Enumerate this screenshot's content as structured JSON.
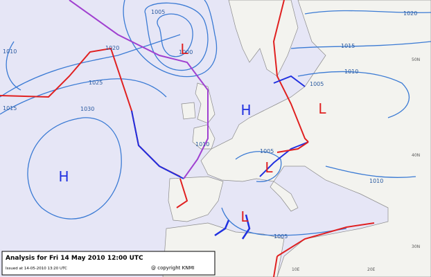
{
  "map": {
    "isobar_labels": [
      "1020",
      "1020",
      "1015",
      "1010",
      "1010",
      "1005",
      "1025",
      "1015",
      "1030",
      "1005",
      "1000",
      "1005",
      "1005",
      "1010",
      "1010"
    ],
    "pressure_centers": [
      {
        "label": "H",
        "kind": "high"
      },
      {
        "label": "H",
        "kind": "high"
      },
      {
        "label": "L",
        "kind": "low"
      },
      {
        "label": "L",
        "kind": "low"
      },
      {
        "label": "L",
        "kind": "low"
      },
      {
        "label": "L",
        "kind": "low"
      }
    ],
    "lat_labels": [
      "50N",
      "40N",
      "30N"
    ],
    "lon_labels": [
      "10E",
      "20E"
    ],
    "footer": {
      "title": "Analysis for Fri 14 May 2010  12:00 UTC",
      "issued": "Issued at 14-05-2010  13:20 UTC",
      "copyright": "@ copyright KNMI"
    }
  }
}
